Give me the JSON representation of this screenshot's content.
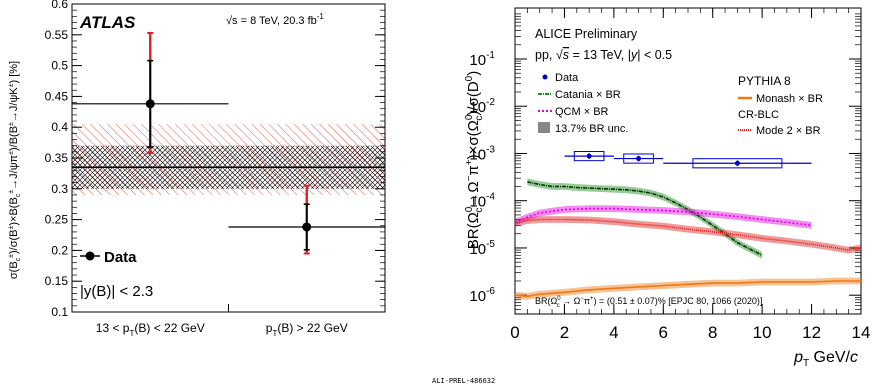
{
  "chart_data": [
    {
      "type": "scatter",
      "experiment": "ATLAS",
      "energy_text": "√s = 8 TeV, 20.3 fb",
      "energy_sup": "-1",
      "ylabel": "σ(B⁺c)/σ(B⁺)×B(B⁺c→J/ψπ⁺)/B(B⁺→J/ψK⁺) [%]",
      "ylabel_lines": [
        "σ(B",
        "c",
        "±",
        ")/σ(B",
        "±",
        ")×B(B",
        "c",
        "±",
        "→J/ψπ",
        "±",
        ")/B(B",
        "±",
        "→J/ψK",
        "±",
        ") [%]"
      ],
      "ylim": [
        0.1,
        0.6
      ],
      "yticks": [
        "0.1",
        "0.15",
        "0.2",
        "0.25",
        "0.3",
        "0.35",
        "0.4",
        "0.45",
        "0.5",
        "0.55",
        "0.6"
      ],
      "categories": [
        "13 < pT(B) < 22 GeV",
        "pT(B) > 22 GeV"
      ],
      "category_labels": [
        {
          "pre": "13 < p",
          "sub": "T",
          "post": "(B) < 22 GeV"
        },
        {
          "pre": "p",
          "sub": "T",
          "post": "(B) > 22 GeV"
        }
      ],
      "series": [
        {
          "name": "Data",
          "values": [
            0.438,
            0.238
          ],
          "stat_err": [
            0.07,
            0.037
          ],
          "total_up": [
            0.115,
            0.067
          ],
          "total_down": [
            0.08,
            0.043
          ]
        }
      ],
      "average_line": 0.335,
      "band_black": [
        0.3,
        0.37
      ],
      "band_red": [
        0.29,
        0.405
      ],
      "legend_label": "Data",
      "rapidity_text": "|y(B)| < 2.3"
    },
    {
      "type": "line",
      "title": "ALICE Preliminary",
      "subtitle": "pp, √s = 13 TeV, |y| < 0.5",
      "ylabel": "BR(Ω0c→Ω⁻π⁺)×σ(Ω0c)/σ(D0)",
      "xlabel": "pT GeV/c",
      "xlim": [
        0,
        14
      ],
      "ylim_log": [
        4e-07,
        1.2
      ],
      "xticks": [
        "0",
        "2",
        "4",
        "6",
        "8",
        "10",
        "12",
        "14"
      ],
      "yticks": [
        "10",
        "10",
        "10",
        "10",
        "10",
        "10"
      ],
      "ytick_exps": [
        "-6",
        "-5",
        "-4",
        "-3",
        "-2",
        "-1"
      ],
      "legend_left": [
        "Data",
        "Catania × BR",
        "QCM × BR",
        "13.7% BR unc."
      ],
      "legend_right_title": "PYTHIA 8",
      "legend_right": [
        "Monash × BR",
        "CR-BLC",
        "Mode 2 × BR"
      ],
      "annotation": "BR(Ω0c → Ω⁻π⁺) = (0.51 ± 0.07)% [EPJC 80, 1066 (2020)]",
      "data_points": {
        "x": [
          3,
          5,
          9
        ],
        "x_err": [
          1,
          1,
          3
        ],
        "y": [
          0.00088,
          0.00078,
          0.00062
        ],
        "box_up": [
          1.25,
          1.25,
          1.25
        ],
        "box_down": [
          0.8,
          0.8,
          0.8
        ]
      },
      "series": [
        {
          "name": "Catania × BR",
          "color": "#1a8a1a",
          "x": [
            0.5,
            1,
            1.5,
            2,
            2.5,
            3,
            3.5,
            4,
            4.5,
            5,
            5.5,
            6,
            6.5,
            7,
            7.5,
            8,
            8.5,
            9,
            9.5,
            10
          ],
          "y": [
            0.00025,
            0.00022,
            0.0002,
            0.0002,
            0.00019,
            0.000185,
            0.00018,
            0.000175,
            0.00017,
            0.00016,
            0.000145,
            0.00012,
            9e-05,
            6.5e-05,
            4.5e-05,
            3e-05,
            2e-05,
            1.3e-05,
            9.5e-06,
            7e-06
          ]
        },
        {
          "name": "QCM × BR",
          "color": "#e100e1",
          "x": [
            0,
            0.5,
            1,
            1.5,
            2,
            3,
            4,
            5,
            6,
            7,
            8,
            9,
            10,
            11,
            12
          ],
          "y": [
            3.5e-05,
            4.5e-05,
            5.5e-05,
            6e-05,
            6.5e-05,
            6.8e-05,
            6.8e-05,
            6.5e-05,
            6.2e-05,
            5.8e-05,
            5.2e-05,
            4.6e-05,
            4e-05,
            3.5e-05,
            3e-05
          ]
        },
        {
          "name": "Monash × BR",
          "color": "#f07814",
          "x": [
            0,
            0.5,
            1,
            2,
            3,
            4,
            5,
            6,
            7,
            8,
            9,
            10,
            11,
            12,
            13,
            14
          ],
          "y": [
            1e-06,
            9.5e-07,
            1.05e-06,
            1.15e-06,
            1.3e-06,
            1.4e-06,
            1.5e-06,
            1.6e-06,
            1.7e-06,
            1.8e-06,
            1.8e-06,
            1.9e-06,
            1.9e-06,
            1.9e-06,
            2e-06,
            2e-06
          ]
        },
        {
          "name": "Mode 2 × BR",
          "color": "#e02020",
          "x": [
            0,
            0.5,
            1,
            1.5,
            2,
            3,
            4,
            5,
            6,
            7,
            8,
            9,
            10,
            11,
            12,
            13,
            13.5,
            14
          ],
          "y": [
            3.3e-05,
            3.8e-05,
            4e-05,
            4e-05,
            4e-05,
            3.9e-05,
            3.6e-05,
            3.2e-05,
            2.9e-05,
            2.5e-05,
            2.2e-05,
            1.9e-05,
            1.6e-05,
            1.4e-05,
            1.2e-05,
            1e-05,
            9e-06,
            1e-05
          ]
        }
      ]
    }
  ],
  "footer_label": "ALI-PREL-486632"
}
